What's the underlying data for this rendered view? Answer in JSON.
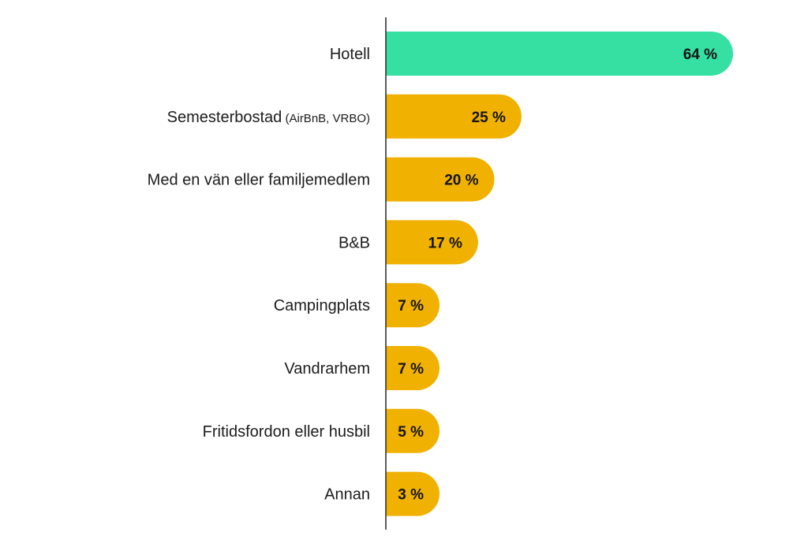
{
  "chart_data": {
    "type": "bar",
    "orientation": "horizontal",
    "categories": [
      {
        "label": "Hotell",
        "note": ""
      },
      {
        "label": "Semesterbostad",
        "note": "(AirBnB, VRBO)"
      },
      {
        "label": "Med en vän eller familjemedlem",
        "note": ""
      },
      {
        "label": "B&B",
        "note": ""
      },
      {
        "label": "Campingplats",
        "note": ""
      },
      {
        "label": "Vandrarhem",
        "note": ""
      },
      {
        "label": "Fritidsfordon eller husbil",
        "note": ""
      },
      {
        "label": "Annan",
        "note": ""
      }
    ],
    "values": [
      64,
      25,
      20,
      17,
      7,
      7,
      5,
      3
    ],
    "value_labels": [
      "64 %",
      "25 %",
      "20 %",
      "17 %",
      "7 %",
      "7 %",
      "5 %",
      "3 %"
    ],
    "highlight_index": 0,
    "title": "",
    "xlabel": "",
    "ylabel": "",
    "xlim": [
      0,
      64
    ],
    "grid": false,
    "legend": "none"
  },
  "colors": {
    "highlight": "#36e0a2",
    "default": "#f0b100",
    "axis": "#333333",
    "label_text": "#1c1c1c",
    "value_text": "#141414",
    "background": "#ffffff"
  }
}
